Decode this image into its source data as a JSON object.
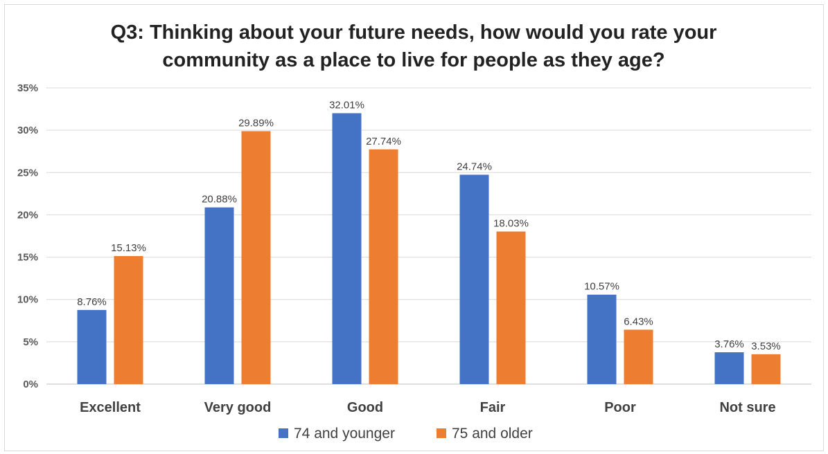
{
  "chart_data": {
    "type": "bar",
    "title": "Q3: Thinking about your future needs, how would you rate your community as a place to live for people as they age?",
    "title_lines": [
      "Q3: Thinking about your future needs, how would you rate your",
      "community as a place to live for people as they age?"
    ],
    "xlabel": "",
    "ylabel": "",
    "categories": [
      "Excellent",
      "Very good",
      "Good",
      "Fair",
      "Poor",
      "Not sure"
    ],
    "series": [
      {
        "name": "74 and younger",
        "color": "#4472c4",
        "values": [
          8.76,
          20.88,
          32.01,
          24.74,
          10.57,
          3.76
        ],
        "labels": [
          "8.76%",
          "20.88%",
          "32.01%",
          "24.74%",
          "10.57%",
          "3.76%"
        ]
      },
      {
        "name": "75 and older",
        "color": "#ed7d31",
        "values": [
          15.13,
          29.89,
          27.74,
          18.03,
          6.43,
          3.53
        ],
        "labels": [
          "15.13%",
          "29.89%",
          "27.74%",
          "18.03%",
          "6.43%",
          "3.53%"
        ]
      }
    ],
    "ylim": [
      0,
      35
    ],
    "yticks": [
      0,
      5,
      10,
      15,
      20,
      25,
      30,
      35
    ],
    "ytick_labels": [
      "0%",
      "5%",
      "10%",
      "15%",
      "20%",
      "25%",
      "30%",
      "35%"
    ],
    "grid": true,
    "legend_position": "bottom"
  }
}
